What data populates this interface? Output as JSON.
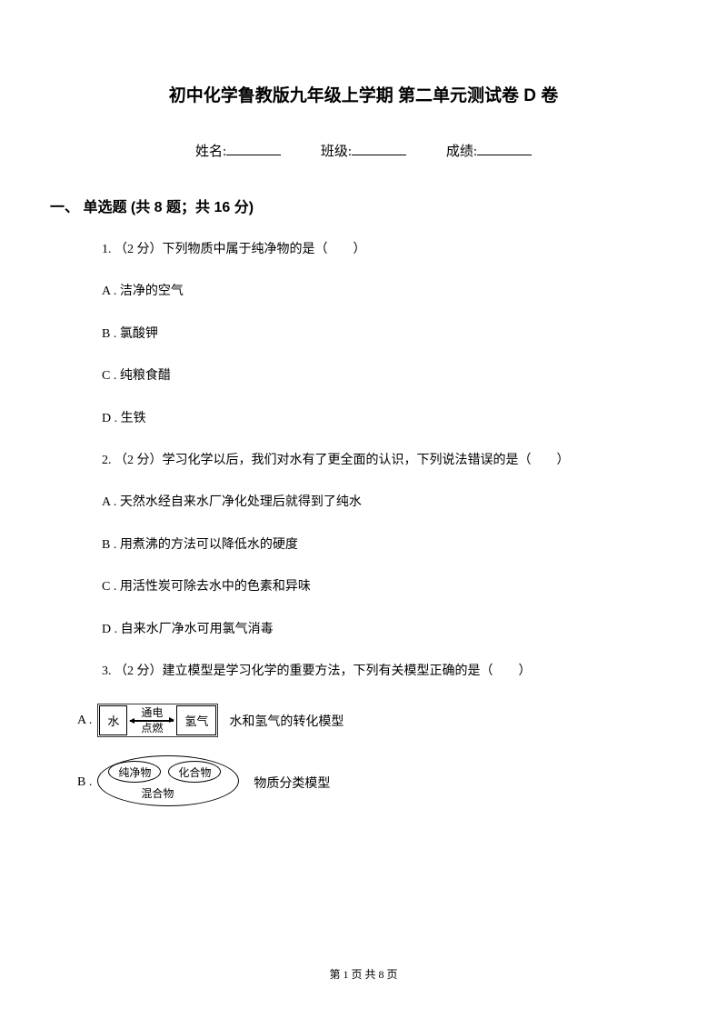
{
  "title": "初中化学鲁教版九年级上学期 第二单元测试卷 D 卷",
  "info": {
    "name_label": "姓名:",
    "class_label": "班级:",
    "score_label": "成绩:"
  },
  "section": {
    "header": "一、 单选题 (共 8 题；共 16 分)"
  },
  "questions": {
    "q1": {
      "text": "1.  （2 分）下列物质中属于纯净物的是（　　）",
      "a": "A . 洁净的空气",
      "b": "B . 氯酸钾",
      "c": "C . 纯粮食醋",
      "d": "D . 生铁"
    },
    "q2": {
      "text": "2.  （2 分）学习化学以后，我们对水有了更全面的认识，下列说法错误的是（　　）",
      "a": "A . 天然水经自来水厂净化处理后就得到了纯水",
      "b": "B . 用煮沸的方法可以降低水的硬度",
      "c": "C . 用活性炭可除去水中的色素和异味",
      "d": "D . 自来水厂净水可用氯气消毒"
    },
    "q3": {
      "text": "3.  （2 分）建立模型是学习化学的重要方法，下列有关模型正确的是（　　）",
      "optA": {
        "prefix": "A . ",
        "suffix": "水和氢气的转化模型",
        "diagram": {
          "left_box": "水",
          "top_label": "通电",
          "bottom_label": "点燃",
          "right_box": "氢气"
        }
      },
      "optB": {
        "prefix": "B . ",
        "suffix": "物质分类模型",
        "diagram": {
          "ellipse1": "纯净物",
          "ellipse2": "化合物",
          "bottom": "混合物"
        }
      }
    }
  },
  "footer": "第 1 页 共 8 页"
}
